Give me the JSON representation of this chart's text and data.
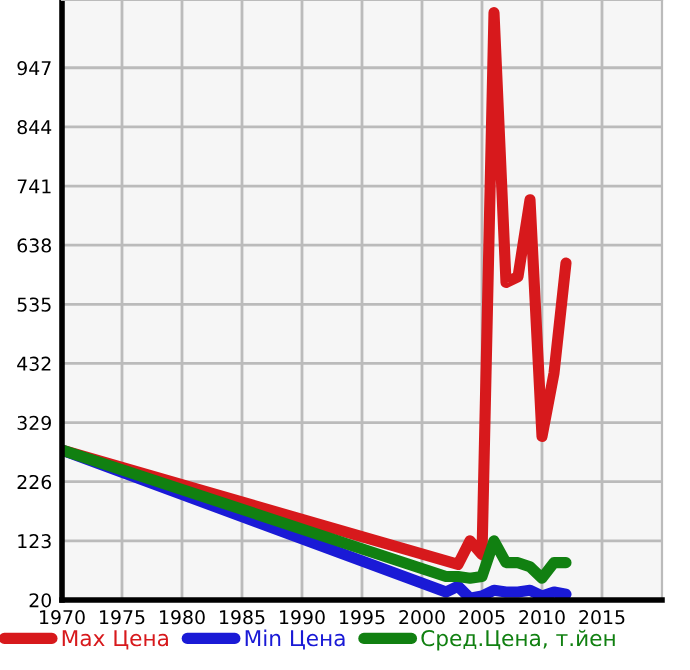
{
  "chart_data": {
    "type": "line",
    "series": [
      {
        "name": "Max Цена",
        "color": "#d7191c",
        "x": [
          1970,
          2003,
          2004,
          2005,
          2006,
          2007,
          2008,
          2009,
          2010,
          2011,
          2012
        ],
        "values": [
          281,
          82,
          123,
          99,
          1043,
          573,
          583,
          717,
          305,
          415,
          607
        ]
      },
      {
        "name": "Min Цена",
        "color": "#1a1ad6",
        "x": [
          1970,
          2002,
          2003,
          2004,
          2005,
          2006,
          2007,
          2008,
          2009,
          2010,
          2011,
          2012
        ],
        "values": [
          281,
          34,
          44,
          23,
          27,
          37,
          34,
          34,
          37,
          27,
          34,
          30
        ]
      },
      {
        "name": "Сред.Цена, т.йен",
        "color": "#118011",
        "x": [
          1970,
          2002,
          2003,
          2004,
          2005,
          2006,
          2007,
          2008,
          2009,
          2010,
          2011,
          2012
        ],
        "values": [
          281,
          61,
          61,
          58,
          61,
          123,
          85,
          85,
          78,
          58,
          85,
          85
        ]
      }
    ],
    "xlim": [
      1970,
      2020
    ],
    "xticks": [
      1970,
      1975,
      1980,
      1985,
      1990,
      1995,
      2000,
      2005,
      2010,
      2015
    ],
    "ylim": [
      20,
      1065
    ],
    "yticks": [
      20,
      123,
      226,
      329,
      432,
      535,
      638,
      741,
      844,
      947
    ],
    "grid": true,
    "legend": "bottom",
    "marker": "none",
    "line_style": "solid"
  }
}
